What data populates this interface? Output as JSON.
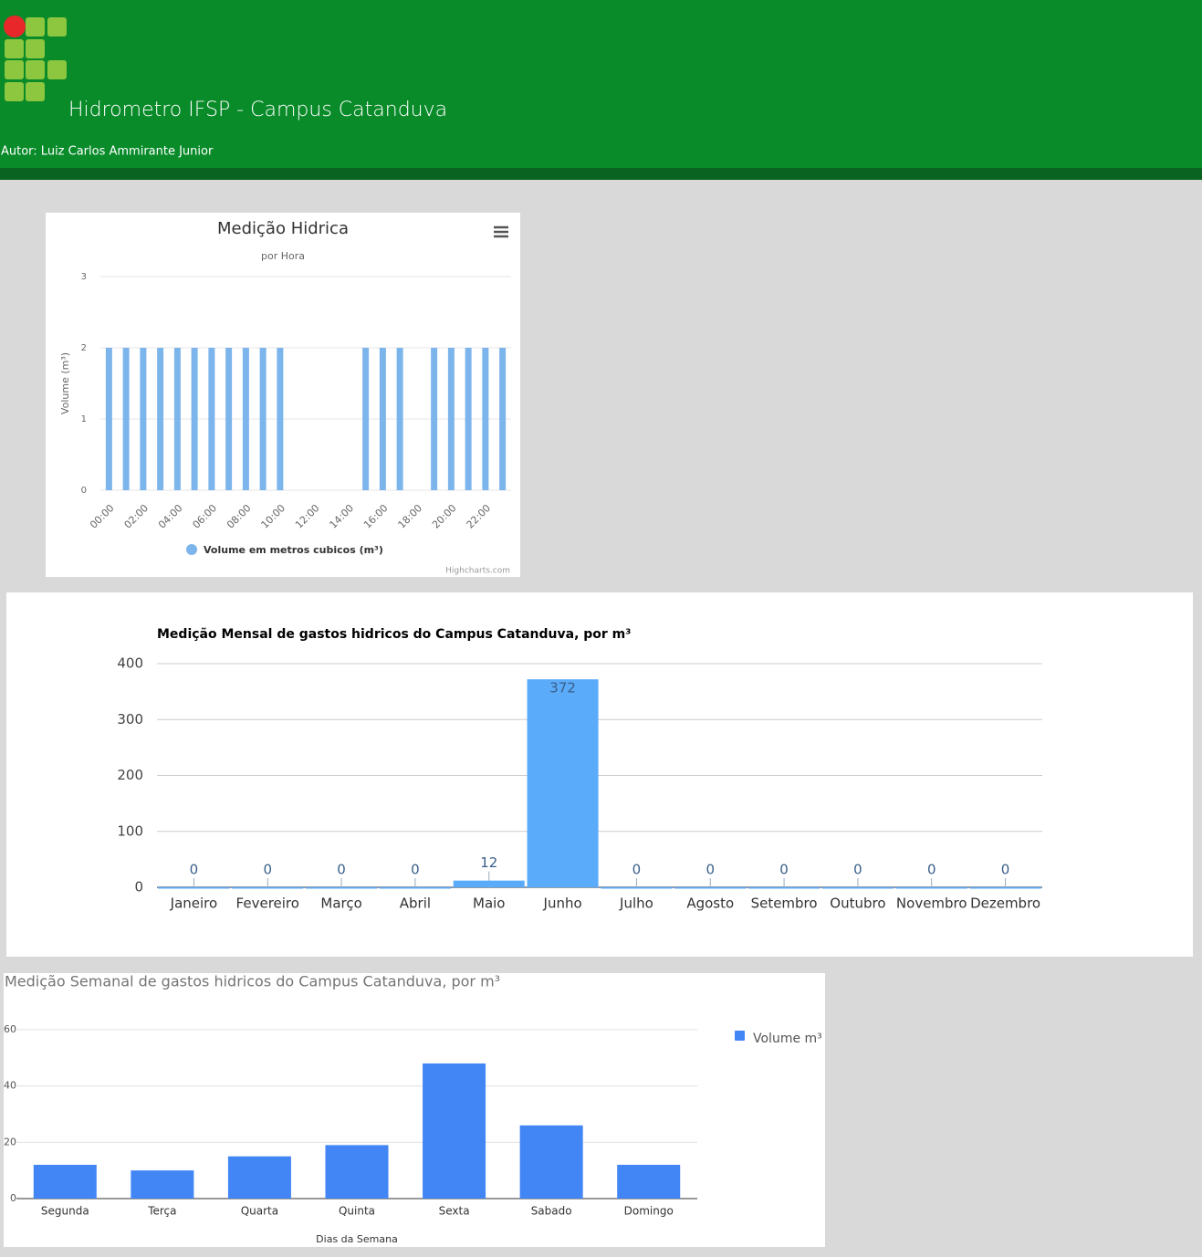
{
  "header": {
    "title": "Hidrometro IFSP - Campus Catanduva",
    "author": "Autor: Luiz Carlos Ammirante Junior"
  },
  "chart_data": [
    {
      "type": "bar",
      "title": "Medição Hidrica",
      "subtitle": "por Hora",
      "y_label": "Volume (m³)",
      "credit": "Highcharts.com",
      "categories": [
        "00:00",
        null,
        "02:00",
        null,
        "04:00",
        null,
        "06:00",
        null,
        "08:00",
        null,
        "10:00",
        null,
        "12:00",
        null,
        "14:00",
        null,
        "16:00",
        null,
        "18:00",
        null,
        "20:00",
        null,
        "22:00",
        null
      ],
      "series": [
        {
          "name": "Volume em metros cubicos (m³)",
          "color": "#7cb5ec",
          "values": [
            2,
            2,
            2,
            2,
            2,
            2,
            2,
            2,
            2,
            2,
            2,
            0,
            0,
            0,
            0,
            2,
            2,
            2,
            0,
            2,
            2,
            2,
            2,
            2
          ]
        }
      ],
      "ylim": [
        0,
        3
      ],
      "yticks": [
        0,
        1,
        2,
        3
      ],
      "grid": true,
      "legend": "bottom"
    },
    {
      "type": "bar",
      "title": "Medição Mensal de gastos hidricos do Campus Catanduva, por m³",
      "categories": [
        "Janeiro",
        "Fevereiro",
        "Março",
        "Abril",
        "Maio",
        "Junho",
        "Julho",
        "Agosto",
        "Setembro",
        "Outubro",
        "Novembro",
        "Dezembro"
      ],
      "series": [
        {
          "color": "#5aabf9",
          "values": [
            0,
            0,
            0,
            0,
            12,
            372,
            0,
            0,
            0,
            0,
            0,
            0
          ]
        }
      ],
      "ylim": [
        0,
        400
      ],
      "yticks": [
        0,
        100,
        200,
        300,
        400
      ],
      "grid": true,
      "data_labels": true
    },
    {
      "type": "bar",
      "title": "Medição Semanal de gastos hidricos do Campus Catanduva, por m³",
      "x_label": "Dias da Semana",
      "categories": [
        "Segunda",
        "Terça",
        "Quarta",
        "Quinta",
        "Sexta",
        "Sabado",
        "Domingo"
      ],
      "series": [
        {
          "name": "Volume m³",
          "color": "#4285f4",
          "values": [
            12,
            10,
            15,
            19,
            48,
            26,
            12
          ]
        }
      ],
      "ylim": [
        0,
        60
      ],
      "yticks": [
        0,
        20,
        40,
        60
      ],
      "grid": true,
      "legend": "right"
    }
  ]
}
